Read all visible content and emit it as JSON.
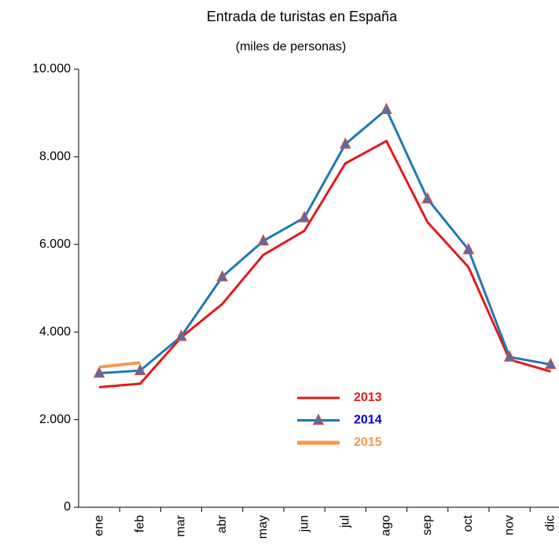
{
  "chart_data": {
    "type": "line",
    "title": "Entrada de turistas en España",
    "subtitle": "(miles de personas)",
    "categories": [
      "ene",
      "feb",
      "mar",
      "abr",
      "may",
      "jun",
      "jul",
      "ago",
      "sep",
      "oct",
      "nov",
      "dic"
    ],
    "series": [
      {
        "name": "2013",
        "color": "#e31a1c",
        "text_color": "#e31a1c",
        "marker": "none",
        "values": [
          2740,
          2820,
          3880,
          4640,
          5760,
          6310,
          7850,
          8360,
          6510,
          5480,
          3370,
          3100
        ]
      },
      {
        "name": "2014",
        "color": "#1f78b4",
        "text_color": "#0000dd",
        "marker": "triangle",
        "values": [
          3060,
          3120,
          3900,
          5260,
          6080,
          6610,
          8290,
          9080,
          7040,
          5880,
          3430,
          3260
        ]
      },
      {
        "name": "2015",
        "color": "#f59a4e",
        "text_color": "#f59a4e",
        "marker": "none",
        "values": [
          3200,
          3300,
          null,
          null,
          null,
          null,
          null,
          null,
          null,
          null,
          null,
          null
        ]
      }
    ],
    "ylim": [
      0,
      10000
    ],
    "yticks": [
      0,
      {
        "value": 2000,
        "label": "2.000"
      },
      {
        "value": 4000,
        "label": "4.000"
      },
      {
        "value": 6000,
        "label": "6.000"
      },
      {
        "value": 8000,
        "label": "8.000"
      },
      {
        "value": 10000,
        "label": "10.000"
      }
    ],
    "grid": false
  }
}
